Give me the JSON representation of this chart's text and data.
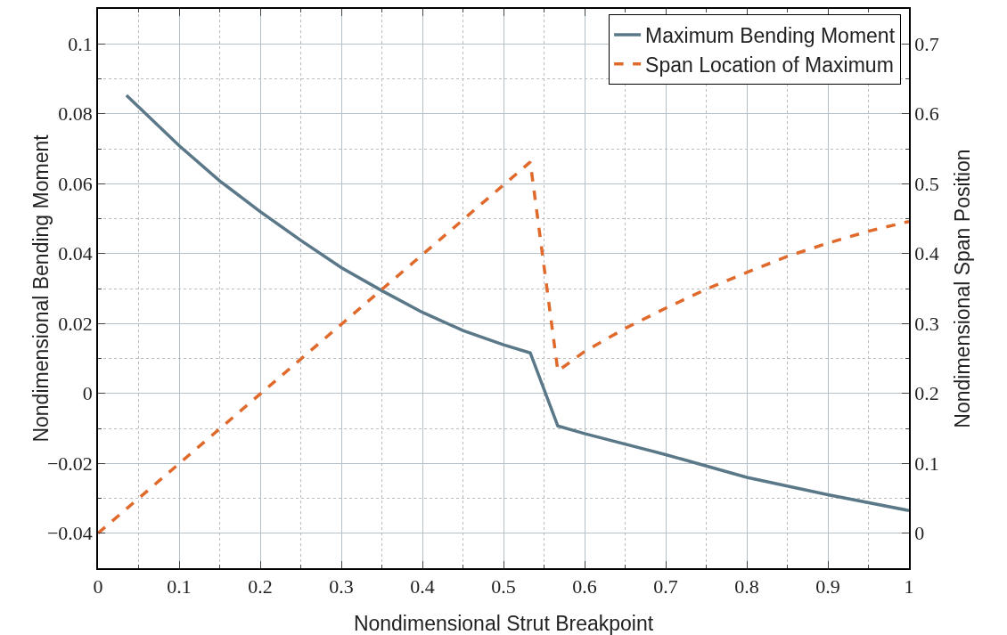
{
  "chart_data": {
    "type": "line",
    "xlabel": "Nondimensional Strut Breakpoint",
    "ylabel": "Nondimensional Bending Moment",
    "y2label": "Nondimensional Span Position",
    "x": [
      0.035,
      0.1,
      0.15,
      0.2,
      0.25,
      0.3,
      0.35,
      0.4,
      0.45,
      0.5,
      0.533,
      0.567,
      0.6,
      0.7,
      0.8,
      0.9,
      1.0
    ],
    "series": [
      {
        "name": "Maximum Bending Moment",
        "color": "#5a7888",
        "line_style": "solid",
        "values": [
          0.0853,
          0.0709,
          0.0608,
          0.052,
          0.0438,
          0.036,
          0.0294,
          0.0232,
          0.018,
          0.0139,
          0.0116,
          -0.0093,
          -0.0115,
          -0.0175,
          -0.024,
          -0.029,
          -0.0335
        ]
      },
      {
        "name": "Span Location of Maximum",
        "color": "#e06a2c",
        "line_style": "dashed",
        "axis": "y2",
        "x": [
          0,
          0.533,
          0.567,
          0.6,
          0.65,
          0.7,
          0.75,
          0.8,
          0.85,
          0.9,
          0.95,
          1.0
        ],
        "values": [
          0,
          0.531,
          0.232,
          0.26,
          0.293,
          0.322,
          0.349,
          0.373,
          0.396,
          0.415,
          0.432,
          0.446
        ]
      }
    ],
    "xlim": [
      0,
      1
    ],
    "xticks": [
      0,
      0.1,
      0.2,
      0.3,
      0.4,
      0.5,
      0.6,
      0.7,
      0.8,
      0.9,
      1
    ],
    "ylim": [
      -0.05,
      0.11
    ],
    "yticks": [
      {
        "value": -0.04,
        "label": "−0.04"
      },
      {
        "value": -0.02,
        "label": "−0.02"
      },
      0,
      0.02,
      0.04,
      0.06,
      0.08,
      0.1
    ],
    "y2lim": [
      -0.05,
      0.75
    ],
    "y2ticks": [
      0,
      0.1,
      0.2,
      0.3,
      0.4,
      0.5,
      0.6,
      0.7
    ],
    "grid": true,
    "legend": "top right",
    "marker": "none"
  }
}
